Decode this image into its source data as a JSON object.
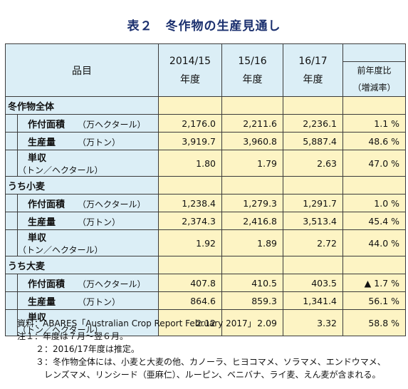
{
  "title": "表２　冬作物の生産見通し",
  "header": {
    "item": "品目",
    "col1_year": "2014/15",
    "col2_year": "15/16",
    "col3_year": "16/17",
    "year_sub": "年度",
    "change_label": "前年度比",
    "change_sub": "（増減率）"
  },
  "sections": [
    {
      "name": "冬作物全体",
      "rows": [
        {
          "label": "作付面積",
          "unit": "（万ヘクタール）",
          "v1": "2,176.0",
          "v2": "2,211.6",
          "v3": "2,236.1",
          "change": "1.1 %"
        },
        {
          "label": "生産量",
          "unit": "（万トン）",
          "v1": "3,919.7",
          "v2": "3,960.8",
          "v3": "5,887.4",
          "change": "48.6 %"
        },
        {
          "label": "単収",
          "unit": "（トン／ヘクタール）",
          "v1": "1.80",
          "v2": "1.79",
          "v3": "2.63",
          "change": "47.0 %"
        }
      ]
    },
    {
      "name": "うち小麦",
      "rows": [
        {
          "label": "作付面積",
          "unit": "（万ヘクタール）",
          "v1": "1,238.4",
          "v2": "1,279.3",
          "v3": "1,291.7",
          "change": "1.0 %"
        },
        {
          "label": "生産量",
          "unit": "（万トン）",
          "v1": "2,374.3",
          "v2": "2,416.8",
          "v3": "3,513.4",
          "change": "45.4 %"
        },
        {
          "label": "単収",
          "unit": "（トン／ヘクタール）",
          "v1": "1.92",
          "v2": "1.89",
          "v3": "2.72",
          "change": "44.0 %"
        }
      ]
    },
    {
      "name": "うち大麦",
      "rows": [
        {
          "label": "作付面積",
          "unit": "（万ヘクタール）",
          "v1": "407.8",
          "v2": "410.5",
          "v3": "403.5",
          "change": "▲ 1.7 %"
        },
        {
          "label": "生産量",
          "unit": "（万トン）",
          "v1": "864.6",
          "v2": "859.3",
          "v3": "1,341.4",
          "change": "56.1 %"
        },
        {
          "label": "単収",
          "unit": "（トン／ヘクタール）",
          "v1": "2.12",
          "v2": "2.09",
          "v3": "3.32",
          "change": "58.8 %"
        }
      ]
    }
  ],
  "notes": {
    "source": "資料：ABARES「Australian Crop Report February 2017」",
    "note1": "注１：年度は７月～翌６月。",
    "note2": "２：2016/17年度は推定。",
    "note3": "３：冬作物全体には、小麦と大麦の他、カノーラ、ヒヨコマメ、ソラマメ、エンドウマメ、",
    "note3_cont": "レンズマメ、リンシード（亜麻仁）、ルーピン、ベニバナ、ライ麦、えん麦が含まれる。"
  }
}
